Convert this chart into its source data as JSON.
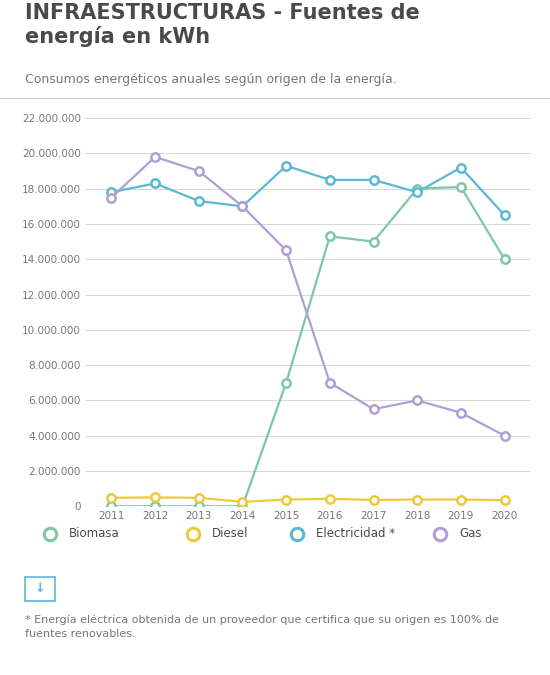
{
  "title": "INFRAESTRUCTURAS - Fuentes de\nenergía en kWh",
  "subtitle": "Consumos energéticos anuales según origen de la energía.",
  "footnote": "* Energía eléctrica obtenida de un proveedor que certifica que su origen es 100% de\nfuentes renovables.",
  "years": [
    2011,
    2012,
    2013,
    2014,
    2015,
    2016,
    2017,
    2018,
    2019,
    2020
  ],
  "biomasa": [
    0,
    0,
    0,
    0,
    7000000,
    15300000,
    15000000,
    18000000,
    18100000,
    14000000
  ],
  "diesel": [
    480000,
    500000,
    480000,
    250000,
    380000,
    420000,
    360000,
    380000,
    380000,
    350000
  ],
  "electricidad": [
    17800000,
    18300000,
    17300000,
    17000000,
    19300000,
    18500000,
    18500000,
    17800000,
    19200000,
    16500000
  ],
  "gas": [
    17500000,
    19800000,
    19000000,
    17000000,
    14500000,
    7000000,
    5500000,
    6000000,
    5300000,
    4000000
  ],
  "color_biomasa": "#7bc8a4",
  "color_diesel": "#f0c93a",
  "color_electricidad": "#5bb8d4",
  "color_gas": "#b09fd4",
  "ylim": [
    0,
    22000000
  ],
  "yticks": [
    0,
    2000000,
    4000000,
    6000000,
    8000000,
    10000000,
    12000000,
    14000000,
    16000000,
    18000000,
    20000000,
    22000000
  ],
  "bg_color": "#ffffff",
  "text_color": "#4a4a4a",
  "grid_color": "#d8d8d8",
  "title_fontsize": 15,
  "subtitle_fontsize": 9,
  "footnote_fontsize": 8,
  "legend_fontsize": 8.5,
  "tick_fontsize": 7.5
}
